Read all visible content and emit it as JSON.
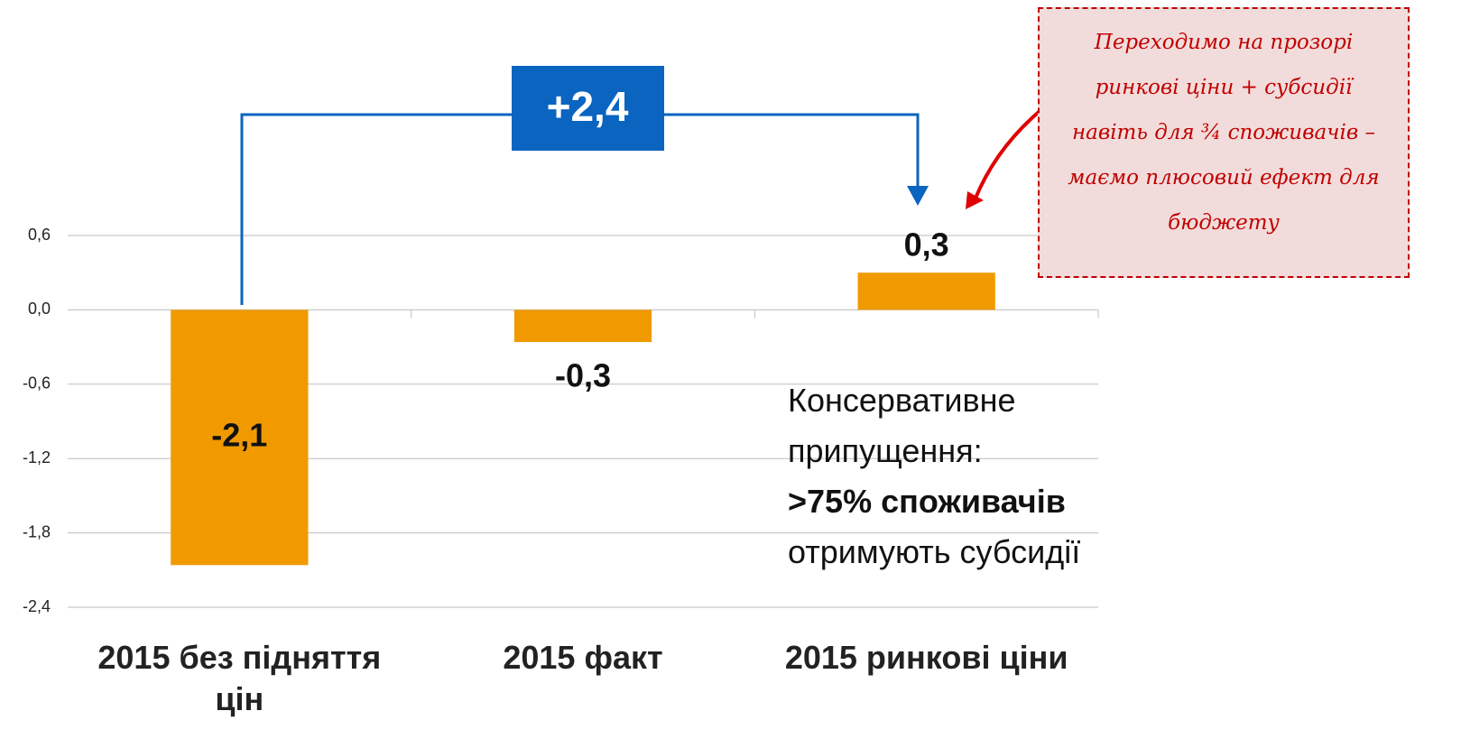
{
  "chart_data": {
    "type": "bar",
    "categories": [
      "2015 без підняття цін",
      "2015 факт",
      "2015 ринкові ціни"
    ],
    "values": [
      -2.06,
      -0.26,
      0.3
    ],
    "value_labels": [
      "-2,1",
      "-0,3",
      "0,3"
    ],
    "color": "#f09a00",
    "ylim": [
      -2.4,
      0.6
    ],
    "yticks": [
      {
        "value": -2.4,
        "label": "-2,4"
      },
      {
        "value": -1.8,
        "label": "-1,8"
      },
      {
        "value": -1.2,
        "label": "-1,2"
      },
      {
        "value": -0.6,
        "label": "-0,6"
      },
      {
        "value": 0,
        "label": "0,0"
      },
      {
        "value": 0.6,
        "label": "0,6"
      }
    ],
    "grid": true,
    "difference_label": "+2,4",
    "note": [
      "Консервативне",
      "припущення:",
      ">75% споживачів",
      "отримують субсидії"
    ],
    "callout": "Переходимо на прозорі ринкові ціни + субсидії навіть для ¾ споживачів – маємо плюсовий ефект для бюджету"
  }
}
